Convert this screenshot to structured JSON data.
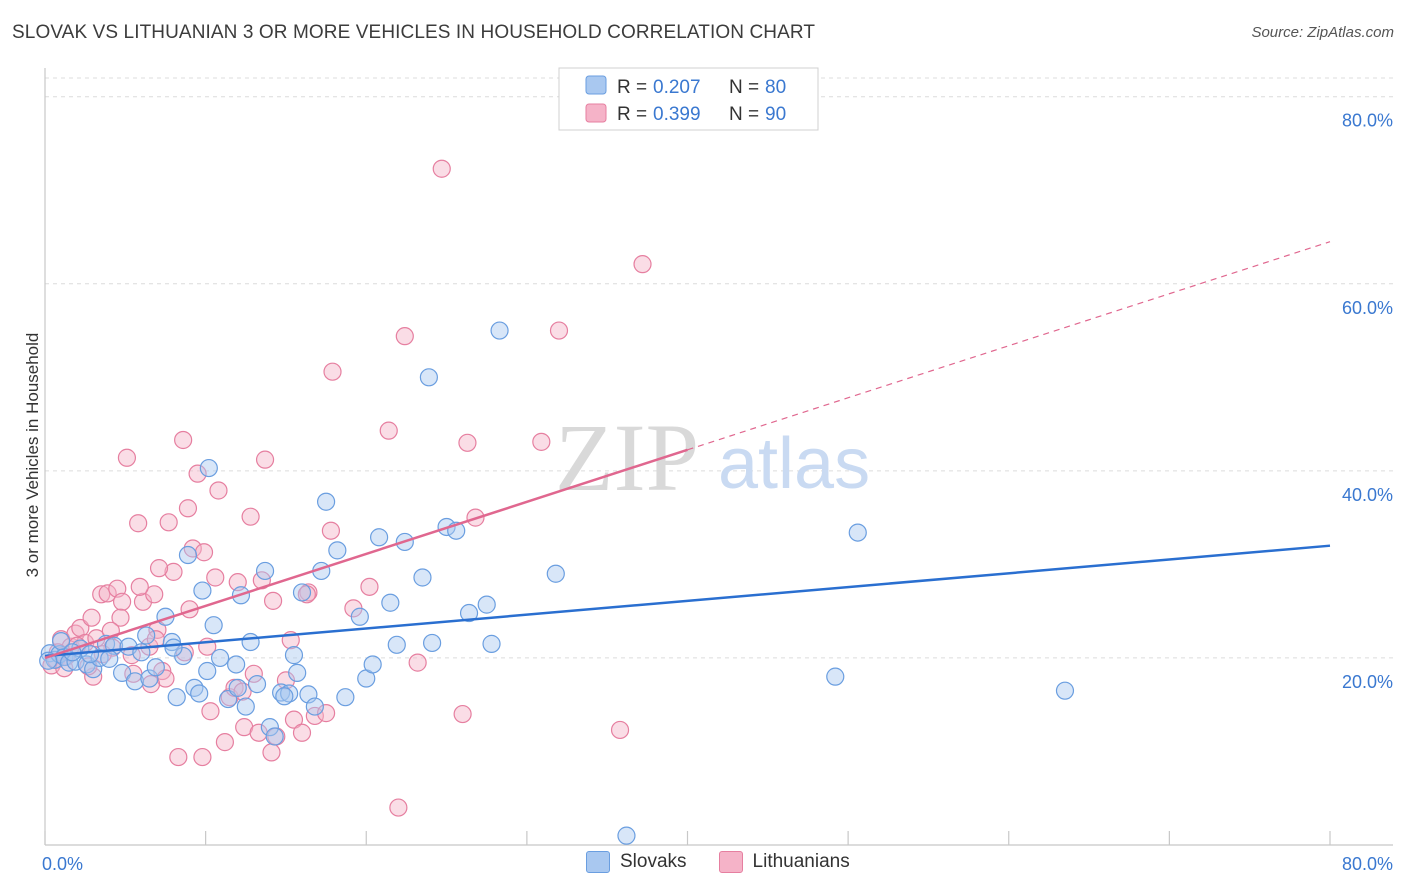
{
  "title": "SLOVAK VS LITHUANIAN 3 OR MORE VEHICLES IN HOUSEHOLD CORRELATION CHART",
  "source": "Source: ZipAtlas.com",
  "watermark": {
    "zip": "ZIP",
    "atlas": "atlas"
  },
  "colors": {
    "blue_fill": "#a9c8f0",
    "blue_stroke": "#6a9ee0",
    "blue_line": "#2a6fd0",
    "pink_fill": "#f5b3c8",
    "pink_stroke": "#e67fa0",
    "pink_line": "#e0678f",
    "tick_blue": "#3a78d0",
    "grid": "#dcdcdc"
  },
  "legend_top": [
    {
      "r_label": "R =",
      "r_value": "0.207",
      "n_label": "N =",
      "n_value": "80"
    },
    {
      "r_label": "R =",
      "r_value": "0.399",
      "n_label": "N =",
      "n_value": "90"
    }
  ],
  "legend_bottom": [
    "Slovaks",
    "Lithuanians"
  ],
  "chart_data": {
    "type": "scatter",
    "title": "SLOVAK VS LITHUANIAN 3 OR MORE VEHICLES IN HOUSEHOLD CORRELATION CHART",
    "xlabel": "",
    "ylabel": "3 or more Vehicles in Household",
    "xlim": [
      0,
      80
    ],
    "ylim": [
      0,
      82
    ],
    "x_tick_labels": [
      "0.0%",
      "80.0%"
    ],
    "y_ticks": [
      20,
      40,
      60,
      80
    ],
    "y_tick_labels": [
      "20.0%",
      "40.0%",
      "60.0%",
      "80.0%"
    ],
    "grid": true,
    "legend_position": "top-center",
    "series": [
      {
        "name": "Slovaks",
        "R": 0.207,
        "N": 80,
        "trend": {
          "x0": 0,
          "y0": 20.2,
          "x1": 80,
          "y1": 32.0,
          "dashed_from": null
        },
        "points": [
          [
            0.3,
            20.5
          ],
          [
            0.6,
            19.8
          ],
          [
            0.9,
            20.4
          ],
          [
            1.2,
            20.1
          ],
          [
            1.5,
            19.5
          ],
          [
            1.9,
            19.6
          ],
          [
            2.2,
            21.0
          ],
          [
            2.6,
            19.3
          ],
          [
            3.0,
            18.8
          ],
          [
            3.4,
            20.0
          ],
          [
            3.8,
            21.5
          ],
          [
            4.3,
            21.3
          ],
          [
            4.8,
            18.4
          ],
          [
            5.2,
            21.2
          ],
          [
            5.6,
            17.5
          ],
          [
            6.0,
            20.6
          ],
          [
            6.5,
            17.8
          ],
          [
            6.9,
            19.0
          ],
          [
            7.5,
            24.4
          ],
          [
            7.9,
            21.7
          ],
          [
            8.2,
            15.8
          ],
          [
            8.6,
            20.2
          ],
          [
            8.9,
            31.0
          ],
          [
            9.3,
            16.8
          ],
          [
            9.6,
            16.2
          ],
          [
            9.8,
            27.2
          ],
          [
            10.2,
            40.3
          ],
          [
            10.5,
            23.5
          ],
          [
            10.9,
            20.0
          ],
          [
            11.4,
            15.6
          ],
          [
            11.9,
            19.3
          ],
          [
            12.2,
            26.7
          ],
          [
            12.5,
            14.8
          ],
          [
            12.8,
            21.7
          ],
          [
            13.2,
            17.2
          ],
          [
            13.7,
            29.3
          ],
          [
            14.0,
            12.6
          ],
          [
            14.3,
            11.6
          ],
          [
            14.7,
            16.3
          ],
          [
            15.2,
            16.2
          ],
          [
            15.5,
            20.3
          ],
          [
            15.7,
            18.4
          ],
          [
            16.0,
            27.0
          ],
          [
            16.4,
            16.1
          ],
          [
            16.8,
            14.8
          ],
          [
            17.2,
            29.3
          ],
          [
            17.5,
            36.7
          ],
          [
            18.2,
            31.5
          ],
          [
            18.7,
            15.8
          ],
          [
            19.6,
            24.4
          ],
          [
            20.0,
            17.8
          ],
          [
            20.4,
            19.3
          ],
          [
            20.8,
            32.9
          ],
          [
            21.5,
            25.9
          ],
          [
            21.9,
            21.4
          ],
          [
            22.4,
            32.4
          ],
          [
            23.5,
            28.6
          ],
          [
            23.9,
            50.0
          ],
          [
            24.1,
            21.6
          ],
          [
            25.0,
            34.0
          ],
          [
            25.6,
            33.6
          ],
          [
            26.4,
            24.8
          ],
          [
            27.5,
            25.7
          ],
          [
            27.8,
            21.5
          ],
          [
            28.3,
            55.0
          ],
          [
            31.8,
            29.0
          ],
          [
            36.2,
            1.0
          ],
          [
            49.2,
            18.0
          ],
          [
            50.6,
            33.4
          ],
          [
            63.5,
            16.5
          ],
          [
            1.0,
            21.8
          ],
          [
            2.8,
            20.4
          ],
          [
            4.0,
            19.9
          ],
          [
            6.3,
            22.4
          ],
          [
            8.0,
            21.1
          ],
          [
            10.1,
            18.6
          ],
          [
            12.0,
            16.8
          ],
          [
            14.9,
            15.9
          ],
          [
            0.2,
            19.7
          ],
          [
            1.7,
            20.6
          ]
        ]
      },
      {
        "name": "Lithuanians",
        "R": 0.399,
        "N": 90,
        "trend": {
          "x0": 0,
          "y0": 20.0,
          "x1": 80,
          "y1": 64.5,
          "dashed_from": 40
        },
        "points": [
          [
            0.4,
            19.2
          ],
          [
            0.7,
            19.8
          ],
          [
            1.0,
            22.0
          ],
          [
            1.3,
            20.1
          ],
          [
            1.6,
            21.2
          ],
          [
            1.9,
            22.6
          ],
          [
            2.2,
            23.2
          ],
          [
            2.5,
            21.6
          ],
          [
            2.9,
            24.3
          ],
          [
            3.2,
            22.1
          ],
          [
            3.5,
            26.8
          ],
          [
            3.9,
            26.9
          ],
          [
            4.2,
            21.1
          ],
          [
            4.5,
            27.4
          ],
          [
            4.8,
            26.0
          ],
          [
            5.1,
            41.4
          ],
          [
            5.4,
            20.3
          ],
          [
            5.8,
            34.4
          ],
          [
            6.1,
            26.0
          ],
          [
            6.5,
            21.2
          ],
          [
            6.8,
            26.8
          ],
          [
            7.0,
            23.0
          ],
          [
            7.3,
            18.6
          ],
          [
            7.7,
            34.5
          ],
          [
            8.0,
            29.2
          ],
          [
            8.3,
            9.4
          ],
          [
            8.6,
            43.3
          ],
          [
            8.9,
            36.0
          ],
          [
            9.2,
            31.7
          ],
          [
            9.5,
            39.7
          ],
          [
            9.8,
            9.4
          ],
          [
            10.1,
            21.2
          ],
          [
            10.6,
            28.6
          ],
          [
            10.8,
            37.9
          ],
          [
            11.2,
            11.0
          ],
          [
            11.5,
            15.8
          ],
          [
            12.0,
            28.1
          ],
          [
            12.4,
            12.6
          ],
          [
            12.8,
            35.1
          ],
          [
            13.0,
            18.3
          ],
          [
            13.3,
            12.0
          ],
          [
            13.7,
            41.2
          ],
          [
            14.1,
            9.9
          ],
          [
            14.4,
            11.6
          ],
          [
            15.0,
            17.6
          ],
          [
            15.5,
            13.4
          ],
          [
            16.0,
            12.0
          ],
          [
            16.4,
            27.0
          ],
          [
            16.8,
            13.8
          ],
          [
            17.5,
            14.1
          ],
          [
            17.8,
            33.6
          ],
          [
            17.9,
            50.6
          ],
          [
            19.2,
            25.3
          ],
          [
            20.2,
            27.6
          ],
          [
            21.4,
            44.3
          ],
          [
            22.4,
            54.4
          ],
          [
            23.2,
            19.5
          ],
          [
            24.7,
            72.3
          ],
          [
            26.0,
            14.0
          ],
          [
            26.3,
            43.0
          ],
          [
            26.8,
            35.0
          ],
          [
            30.9,
            43.1
          ],
          [
            32.0,
            55.0
          ],
          [
            35.8,
            12.3
          ],
          [
            37.2,
            62.1
          ],
          [
            22.0,
            4.0
          ],
          [
            16.3,
            26.8
          ],
          [
            14.2,
            26.1
          ],
          [
            9.0,
            25.2
          ],
          [
            7.5,
            17.8
          ],
          [
            6.6,
            17.2
          ],
          [
            5.5,
            18.3
          ],
          [
            4.7,
            24.3
          ],
          [
            3.6,
            20.4
          ],
          [
            3.0,
            18.0
          ],
          [
            2.0,
            21.3
          ],
          [
            1.2,
            18.9
          ],
          [
            0.8,
            20.6
          ],
          [
            10.3,
            14.3
          ],
          [
            11.8,
            16.8
          ],
          [
            12.3,
            16.4
          ],
          [
            13.5,
            28.3
          ],
          [
            8.7,
            20.6
          ],
          [
            7.1,
            29.6
          ],
          [
            6.9,
            22.0
          ],
          [
            5.9,
            27.6
          ],
          [
            4.1,
            22.9
          ],
          [
            9.9,
            31.3
          ],
          [
            15.3,
            21.9
          ],
          [
            2.7,
            19.1
          ]
        ]
      }
    ]
  }
}
